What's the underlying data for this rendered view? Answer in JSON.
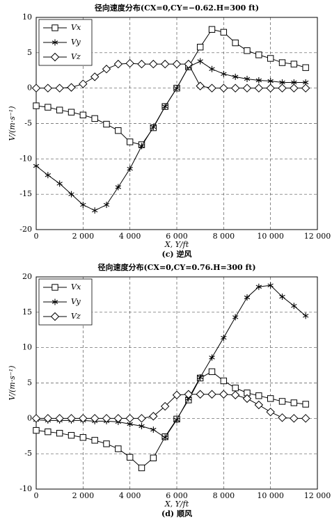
{
  "chart_data": [
    {
      "type": "line",
      "title": "径向速度分布(CX=0,CY=−0.62.H=300 ft)",
      "x_label": "X, Y/ft",
      "y_label": "V/(m·s⁻¹)",
      "caption": "(c) 逆风",
      "x": [
        0,
        500,
        1000,
        1500,
        2000,
        2500,
        3000,
        3500,
        4000,
        4500,
        5000,
        5500,
        6000,
        6500,
        7000,
        7500,
        8000,
        8500,
        9000,
        9500,
        10000,
        10500,
        11000,
        11500
      ],
      "series": [
        {
          "name": "Vx",
          "color": "#000000",
          "marker": "square",
          "values": [
            -2.5,
            -2.7,
            -3.1,
            -3.4,
            -3.8,
            -4.3,
            -5.1,
            -6.0,
            -7.6,
            -8.0,
            -5.6,
            -2.6,
            0,
            3.0,
            5.8,
            8.3,
            7.9,
            6.4,
            5.3,
            4.7,
            4.2,
            3.6,
            3.4,
            2.9
          ]
        },
        {
          "name": "Vy",
          "color": "#000000",
          "marker": "star",
          "values": [
            -11,
            -12.3,
            -13.5,
            -15,
            -16.5,
            -17.3,
            -16.5,
            -14,
            -11.4,
            -8.2,
            -5.5,
            -2.6,
            0,
            3.0,
            3.8,
            2.7,
            2.0,
            1.6,
            1.3,
            1.1,
            1.0,
            0.8,
            0.8,
            0.8
          ]
        },
        {
          "name": "Vz",
          "color": "#000000",
          "marker": "diamond",
          "values": [
            0,
            0,
            0,
            0.1,
            0.6,
            1.6,
            2.7,
            3.4,
            3.5,
            3.4,
            3.4,
            3.4,
            3.4,
            3.4,
            0.3,
            0,
            0,
            0,
            0,
            0,
            0,
            0,
            0,
            0
          ]
        }
      ],
      "xlim": [
        0,
        12000
      ],
      "xticks": [
        0,
        {
          "value": 2000,
          "label": "2 000"
        },
        {
          "value": 4000,
          "label": "4 000"
        },
        {
          "value": 6000,
          "label": "6 000"
        },
        {
          "value": 8000,
          "label": "8 000"
        },
        {
          "value": 10000,
          "label": "10 000"
        },
        {
          "value": 12000,
          "label": "12 000"
        }
      ],
      "ylim": [
        -20,
        10
      ],
      "yticks": [
        -20,
        -15,
        -10,
        -5,
        0,
        5,
        10
      ],
      "grid": true,
      "legend": "upper left"
    },
    {
      "type": "line",
      "title": "径向速度分布(CX=0,CY=0.76.H=300 ft)",
      "x_label": "X, Y/ft",
      "y_label": "V/(m·s⁻¹)",
      "caption": "(d) 顺风",
      "x": [
        0,
        500,
        1000,
        1500,
        2000,
        2500,
        3000,
        3500,
        4000,
        4500,
        5000,
        5500,
        6000,
        6500,
        7000,
        7500,
        8000,
        8500,
        9000,
        9500,
        10000,
        10500,
        11000,
        11500
      ],
      "series": [
        {
          "name": "Vx",
          "color": "#000000",
          "marker": "square",
          "values": [
            -1.7,
            -1.9,
            -2.1,
            -2.4,
            -2.7,
            -3.1,
            -3.6,
            -4.3,
            -5.5,
            -7,
            -5.6,
            -2.6,
            -0.1,
            2.6,
            5.7,
            6.6,
            5.3,
            4.3,
            3.6,
            3.2,
            2.8,
            2.4,
            2.2,
            2.0
          ]
        },
        {
          "name": "Vy",
          "color": "#000000",
          "marker": "star",
          "values": [
            -0.2,
            -0.3,
            -0.3,
            -0.3,
            -0.3,
            -0.4,
            -0.4,
            -0.5,
            -0.8,
            -1.1,
            -1.6,
            -2.7,
            -0.2,
            2.8,
            5.8,
            8.6,
            11.4,
            14.3,
            17.1,
            18.6,
            18.8,
            17.2,
            15.9,
            14.5
          ]
        },
        {
          "name": "Vz",
          "color": "#000000",
          "marker": "diamond",
          "values": [
            0,
            0,
            0,
            0,
            0,
            0,
            0,
            0,
            0,
            0,
            0.3,
            1.7,
            3.3,
            3.4,
            3.4,
            3.4,
            3.4,
            3.3,
            2.8,
            1.9,
            0.9,
            0.1,
            0,
            0
          ]
        }
      ],
      "xlim": [
        0,
        12000
      ],
      "xticks": [
        0,
        {
          "value": 2000,
          "label": "2 000"
        },
        {
          "value": 4000,
          "label": "4 000"
        },
        {
          "value": 6000,
          "label": "6 000"
        },
        {
          "value": 8000,
          "label": "8 000"
        },
        {
          "value": 10000,
          "label": "10 000"
        },
        {
          "value": 12000,
          "label": "12 000"
        }
      ],
      "ylim": [
        -10,
        20
      ],
      "yticks": [
        -10,
        -5,
        0,
        5,
        10,
        15,
        20
      ],
      "grid": true,
      "legend": "upper left"
    }
  ]
}
